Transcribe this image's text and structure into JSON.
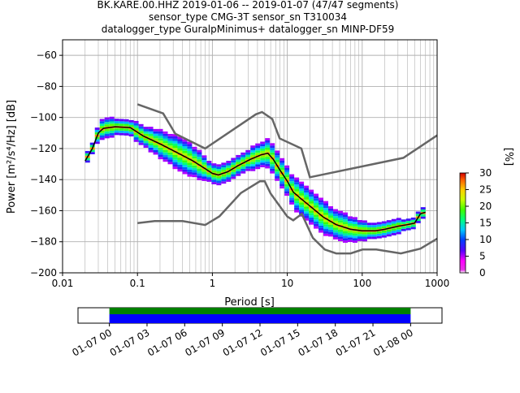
{
  "header": {
    "line1": "BK.KARE.00.HHZ   2019-01-06 -- 2019-01-07  (47/47 segments)",
    "line2": "sensor_type CMG-3T sensor_sn T310034",
    "line3": "datalogger_type GuralpMinimus+ datalogger_sn MINP-DF59"
  },
  "chart_data": {
    "type": "heatmap",
    "xlabel": "Period [s]",
    "ylabel": "Power [m²/s⁴/Hz] [dB]",
    "xscale": "log",
    "xlim": [
      0.01,
      1000
    ],
    "ylim": [
      -200,
      -50
    ],
    "x_ticks": [
      {
        "v": 0.01,
        "label": "0.01"
      },
      {
        "v": 0.1,
        "label": "0.1"
      },
      {
        "v": 1,
        "label": "1"
      },
      {
        "v": 10,
        "label": "10"
      },
      {
        "v": 100,
        "label": "100"
      },
      {
        "v": 1000,
        "label": "1000"
      }
    ],
    "y_ticks": [
      {
        "v": -200,
        "label": "−200"
      },
      {
        "v": -180,
        "label": "−180"
      },
      {
        "v": -160,
        "label": "−160"
      },
      {
        "v": -140,
        "label": "−140"
      },
      {
        "v": -120,
        "label": "−120"
      },
      {
        "v": -100,
        "label": "−100"
      },
      {
        "v": -80,
        "label": "−80"
      },
      {
        "v": -60,
        "label": "−60"
      }
    ],
    "grid": true,
    "noise_model_high": {
      "x": [
        0.1,
        0.22,
        0.32,
        0.8,
        3.8,
        4.6,
        6.3,
        7.9,
        15.4,
        20,
        354.8,
        1000
      ],
      "y": [
        -91.5,
        -97.4,
        -110.5,
        -120,
        -98,
        -96.5,
        -101,
        -113.5,
        -120,
        -138.5,
        -126,
        -111.5
      ]
    },
    "noise_model_low": {
      "x": [
        0.1,
        0.17,
        0.4,
        0.8,
        1.24,
        2.4,
        4.3,
        5.0,
        6.0,
        10.0,
        12.0,
        15.6,
        21.9,
        31.6,
        45.0,
        70.0,
        101.0,
        154.0,
        328.0,
        600.0,
        1000.0
      ],
      "y": [
        -168,
        -166.7,
        -166.7,
        -169.2,
        -163.7,
        -148.6,
        -141.1,
        -141.1,
        -149.0,
        -163.8,
        -166.2,
        -162.1,
        -177.5,
        -185.0,
        -187.5,
        -187.5,
        -185.0,
        -185.0,
        -187.5,
        -184.4,
        -178.0
      ]
    },
    "mode_curve": {
      "x": [
        0.02,
        0.025,
        0.03,
        0.035,
        0.05,
        0.08,
        0.12,
        0.2,
        0.35,
        0.55,
        0.8,
        1.0,
        1.2,
        1.6,
        2.2,
        3.2,
        4.5,
        5.5,
        6.5,
        8.0,
        10.0,
        12.0,
        15.0,
        20.0,
        30.0,
        45.0,
        70.0,
        100.0,
        150.0,
        200.0,
        300.0,
        400.0,
        500.0,
        600.0,
        700.0
      ],
      "y": [
        -128,
        -120,
        -110,
        -107,
        -106,
        -106.5,
        -112,
        -117,
        -123,
        -128,
        -133,
        -136,
        -137,
        -135,
        -131,
        -127,
        -124,
        -123,
        -127,
        -134,
        -141,
        -148,
        -152,
        -157,
        -164,
        -169,
        -172,
        -173,
        -173,
        -172,
        -170,
        -169,
        -168,
        -162,
        -161
      ]
    },
    "density_halfwidth_db": [
      2,
      3,
      6,
      5,
      4,
      4,
      5,
      6,
      7,
      8,
      9,
      10,
      9,
      8,
      6,
      6,
      6,
      6,
      6,
      6,
      7,
      8,
      9,
      9,
      9,
      10,
      10,
      10,
      9,
      8,
      8,
      6,
      5,
      4,
      4,
      4,
      3,
      3,
      3,
      3
    ],
    "colorbar": {
      "label": "[%]",
      "ticks": [
        {
          "v": 0,
          "label": "0"
        },
        {
          "v": 5,
          "label": "5"
        },
        {
          "v": 10,
          "label": "10"
        },
        {
          "v": 15,
          "label": "15"
        },
        {
          "v": 20,
          "label": "20"
        },
        {
          "v": 25,
          "label": "25"
        },
        {
          "v": 30,
          "label": "30"
        }
      ],
      "range": [
        0,
        30
      ]
    },
    "coverage": {
      "start_label": "01-07 00",
      "ticks": [
        "01-07 00",
        "01-07 03",
        "01-07 06",
        "01-07 09",
        "01-07 12",
        "01-07 15",
        "01-07 18",
        "01-07 21",
        "01-08 00"
      ],
      "range_hours": [
        -2.5,
        26.5
      ],
      "data_hours": [
        0,
        24
      ],
      "colors": {
        "green": "#008000",
        "blue": "#0000ff"
      }
    }
  }
}
